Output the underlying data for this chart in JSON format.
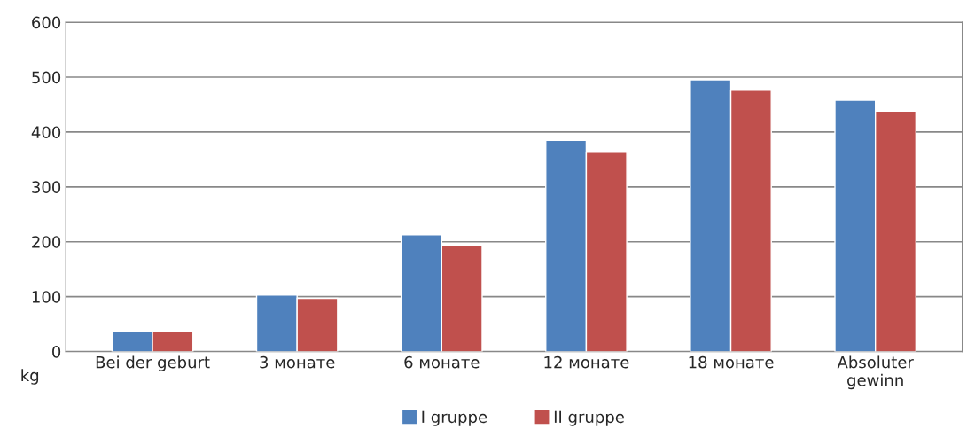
{
  "chart_data": {
    "type": "bar",
    "categories": [
      "Bei der geburt",
      "3 монате",
      "6 монате",
      "12 монате",
      "18 монате",
      "Absoluter\ngewinn"
    ],
    "series": [
      {
        "name": "I gruppe",
        "color": "#4f81bd",
        "values": [
          37,
          103,
          213,
          385,
          495,
          458
        ]
      },
      {
        "name": "II gruppe",
        "color": "#c0504d",
        "values": [
          37,
          97,
          193,
          363,
          476,
          438
        ]
      }
    ],
    "ylabel": "kg",
    "ylim": [
      0,
      600
    ],
    "yticks": [
      0,
      100,
      200,
      300,
      400,
      500,
      600
    ],
    "grid": "y",
    "legend": "bottom"
  }
}
